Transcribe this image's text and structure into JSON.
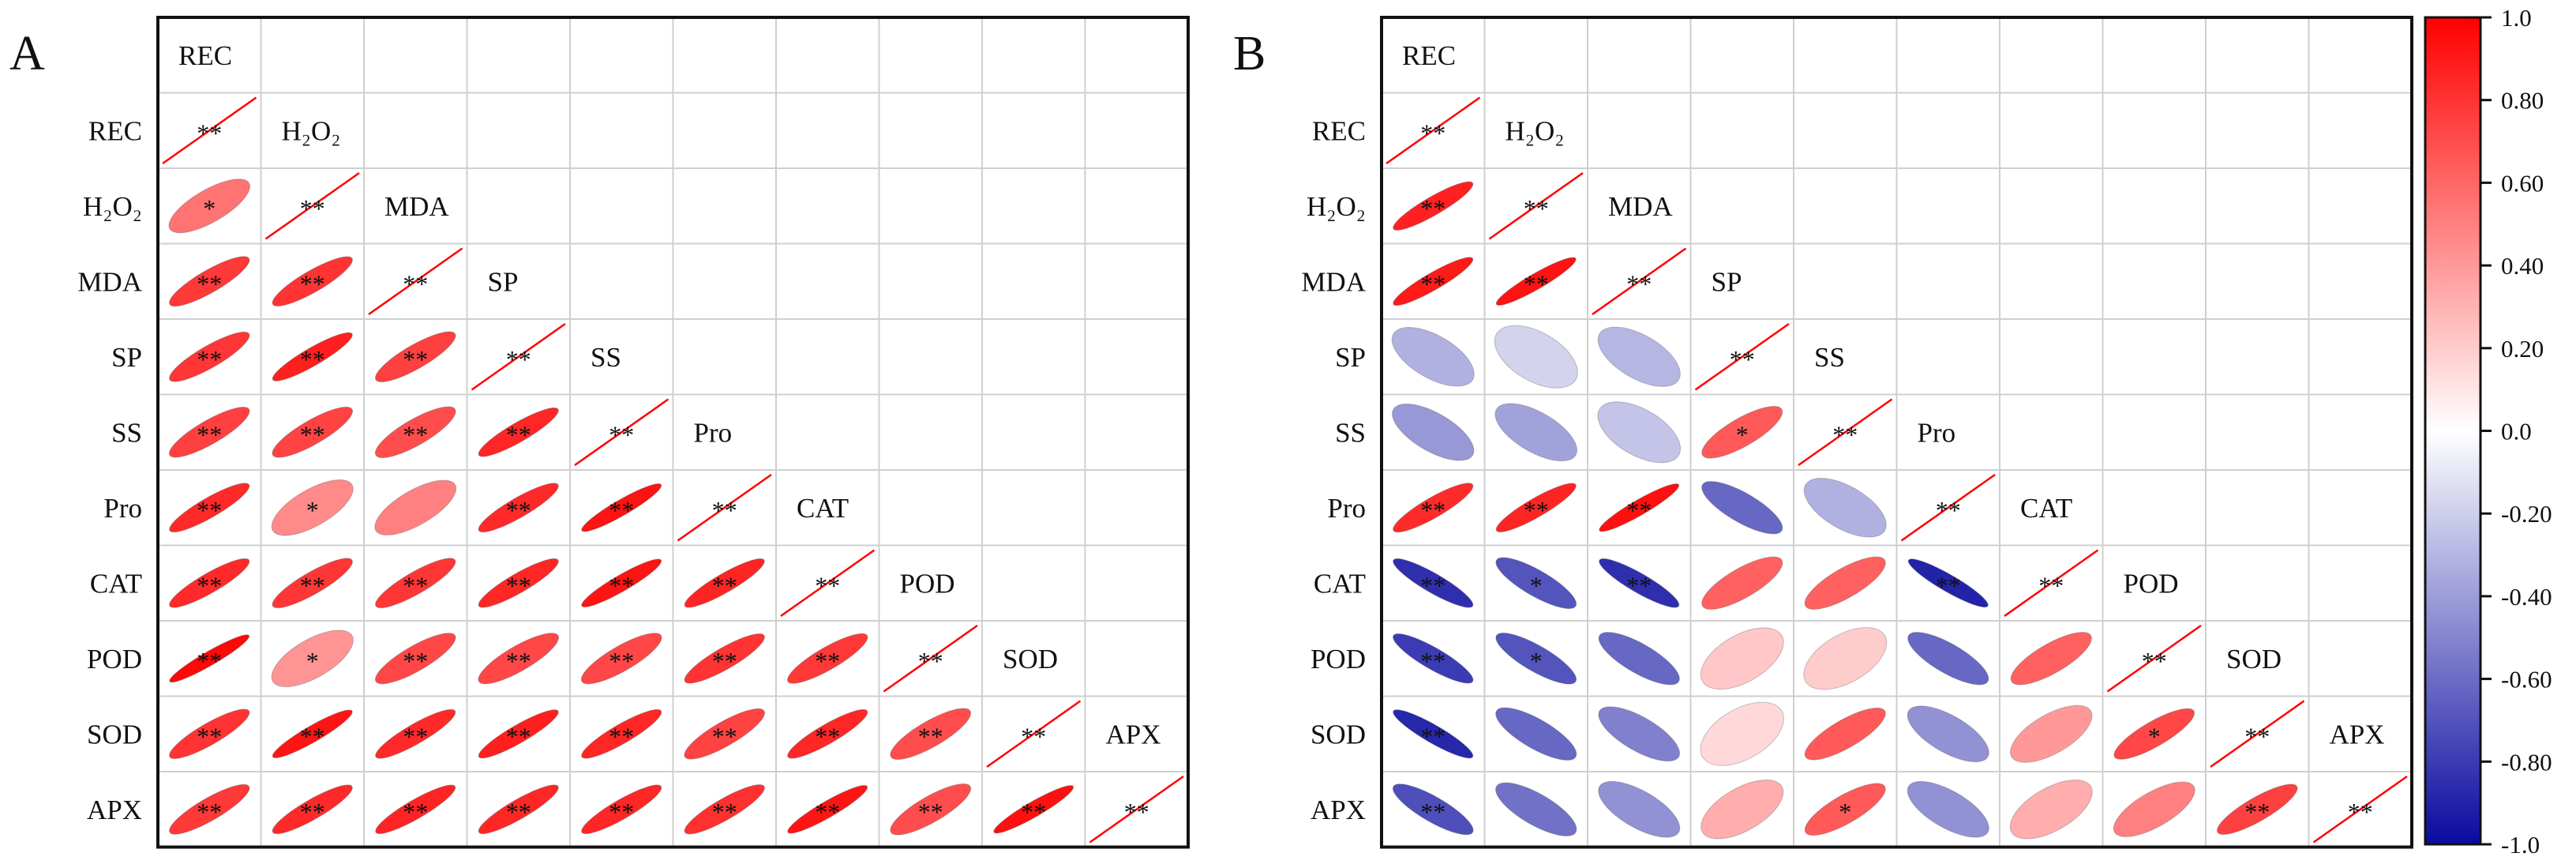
{
  "figure": {
    "panels": [
      "A",
      "B"
    ]
  },
  "chart_data": [
    {
      "type": "heatmap",
      "panel_label": "A",
      "variables": [
        "REC",
        "H2O2",
        "MDA",
        "SP",
        "SS",
        "Pro",
        "CAT",
        "POD",
        "SOD",
        "APX"
      ],
      "display_labels": [
        "REC",
        "H₂O₂",
        "MDA",
        "SP",
        "SS",
        "Pro",
        "CAT",
        "POD",
        "SOD",
        "APX"
      ],
      "lower_triangle_correlations": [
        [],
        [
          0.55
        ],
        [
          0.78,
          0.8
        ],
        [
          0.79,
          0.88,
          0.75
        ],
        [
          0.75,
          0.74,
          0.7,
          0.85
        ],
        [
          0.84,
          0.46,
          0.5,
          0.84,
          0.93
        ],
        [
          0.84,
          0.79,
          0.79,
          0.85,
          0.92,
          0.86
        ],
        [
          0.97,
          0.42,
          0.72,
          0.72,
          0.72,
          0.8,
          0.78
        ],
        [
          0.8,
          0.92,
          0.84,
          0.88,
          0.85,
          0.74,
          0.85,
          0.7
        ],
        [
          0.78,
          0.84,
          0.86,
          0.85,
          0.85,
          0.81,
          0.92,
          0.7,
          0.94
        ]
      ],
      "significance": [
        [],
        [
          "*"
        ],
        [
          "**",
          "**"
        ],
        [
          "**",
          "**",
          "**"
        ],
        [
          "**",
          "**",
          "**",
          "**"
        ],
        [
          "**",
          "*",
          "",
          "**",
          "**"
        ],
        [
          "**",
          "**",
          "**",
          "**",
          "**",
          "**"
        ],
        [
          "**",
          "*",
          "**",
          "**",
          "**",
          "**",
          "**"
        ],
        [
          "**",
          "**",
          "**",
          "**",
          "**",
          "**",
          "**",
          "**"
        ],
        [
          "**",
          "**",
          "**",
          "**",
          "**",
          "**",
          "**",
          "**",
          "**"
        ]
      ],
      "diagonal_mark": "**"
    },
    {
      "type": "heatmap",
      "panel_label": "B",
      "variables": [
        "REC",
        "H2O2",
        "MDA",
        "SP",
        "SS",
        "Pro",
        "CAT",
        "POD",
        "SOD",
        "APX"
      ],
      "display_labels": [
        "REC",
        "H₂O₂",
        "MDA",
        "SP",
        "SS",
        "Pro",
        "CAT",
        "POD",
        "SOD",
        "APX"
      ],
      "lower_triangle_correlations": [
        [],
        [
          0.87
        ],
        [
          0.9,
          0.93
        ],
        [
          -0.32,
          -0.18,
          -0.3
        ],
        [
          -0.42,
          -0.38,
          -0.24,
          0.65
        ],
        [
          0.83,
          0.86,
          0.94,
          -0.62,
          -0.32
        ],
        [
          -0.85,
          -0.7,
          -0.85,
          0.62,
          0.62,
          -0.9
        ],
        [
          -0.8,
          -0.7,
          -0.62,
          0.22,
          0.2,
          -0.62,
          0.62
        ],
        [
          -0.88,
          -0.62,
          -0.52,
          0.15,
          0.65,
          -0.45,
          0.4,
          0.72
        ],
        [
          -0.72,
          -0.58,
          -0.45,
          0.32,
          0.65,
          -0.45,
          0.32,
          0.5,
          0.75
        ]
      ],
      "significance": [
        [],
        [
          "**"
        ],
        [
          "**",
          "**"
        ],
        [
          "",
          "",
          ""
        ],
        [
          "",
          "",
          "",
          "*"
        ],
        [
          "**",
          "**",
          "**",
          "",
          ""
        ],
        [
          "**",
          "*",
          "**",
          "",
          "",
          "**"
        ],
        [
          "**",
          "*",
          "",
          "",
          "",
          "",
          ""
        ],
        [
          "**",
          "",
          "",
          "",
          "",
          "",
          "",
          "*"
        ],
        [
          "**",
          "",
          "",
          "",
          "*",
          "",
          "",
          "",
          "**"
        ]
      ],
      "diagonal_mark": "**"
    }
  ],
  "colorbar": {
    "min": -1.0,
    "max": 1.0,
    "tick_values": [
      1.0,
      0.8,
      0.6,
      0.4,
      0.2,
      0.0,
      -0.2,
      -0.4,
      -0.6,
      -0.8,
      -1.0
    ],
    "tick_labels": [
      "1.0",
      "0.80",
      "0.60",
      "0.40",
      "0.20",
      "0.0",
      "-0.20",
      "-0.40",
      "-0.60",
      "-0.80",
      "-1.0"
    ],
    "color_min": "#0a0aa0",
    "color_mid": "#ffffff",
    "color_max": "#ff0000"
  }
}
